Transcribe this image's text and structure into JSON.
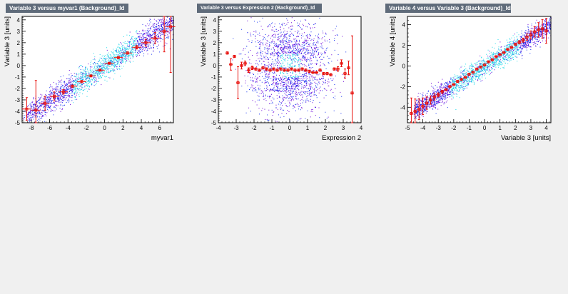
{
  "chart_data": [
    {
      "type": "scatter",
      "title": "Variable 3 versus myvar1 (Background)_Id",
      "xlabel": "myvar1",
      "ylabel": "Variable 3  [units]",
      "xlim": [
        -9,
        7.5
      ],
      "ylim": [
        -5,
        4.3
      ],
      "xticks": [
        -8,
        -6,
        -4,
        -2,
        0,
        2,
        4,
        6
      ],
      "yticks": [
        -5,
        -4,
        -3,
        -2,
        -1,
        0,
        1,
        2,
        3,
        4
      ],
      "series": [
        {
          "type": "profile",
          "color": "#e8120e",
          "x": [
            -8.5,
            -7.5,
            -6.5,
            -5.5,
            -4.5,
            -3.5,
            -2.5,
            -1.5,
            -0.5,
            0.5,
            1.5,
            2.5,
            3.5,
            4.5,
            5.5,
            6.5,
            7.2
          ],
          "y": [
            -3.8,
            -3.9,
            -3.3,
            -2.7,
            -2.3,
            -1.8,
            -1.4,
            -0.9,
            -0.4,
            0.2,
            0.7,
            1.1,
            1.6,
            2.0,
            2.4,
            3.0,
            3.4
          ],
          "err": [
            1.0,
            2.6,
            0.6,
            0.4,
            0.2,
            0.1,
            0.1,
            0.05,
            0.05,
            0.05,
            0.05,
            0.1,
            0.15,
            0.3,
            0.5,
            1.8,
            4.0
          ]
        }
      ]
    },
    {
      "type": "scatter",
      "title": "Variable 3 versus Expression 2 (Background)_Id",
      "xlabel": "Expression 2",
      "ylabel": "Variable 3  [units]",
      "xlim": [
        -4,
        4
      ],
      "ylim": [
        -5,
        4.3
      ],
      "xticks": [
        -4,
        -3,
        -2,
        -1,
        0,
        1,
        2,
        3,
        4
      ],
      "yticks": [
        -5,
        -4,
        -3,
        -2,
        -1,
        0,
        1,
        2,
        3,
        4
      ],
      "series": [
        {
          "type": "profile",
          "color": "#e8120e",
          "x": [
            -3.5,
            -3.3,
            -3.1,
            -2.9,
            -2.7,
            -2.5,
            -2.3,
            -2.1,
            -1.9,
            -1.7,
            -1.5,
            -1.3,
            -1.1,
            -0.9,
            -0.7,
            -0.5,
            -0.3,
            -0.1,
            0.1,
            0.3,
            0.5,
            0.7,
            0.9,
            1.1,
            1.3,
            1.5,
            1.7,
            1.9,
            2.1,
            2.3,
            2.5,
            2.7,
            2.9,
            3.1,
            3.3,
            3.5
          ],
          "y": [
            1.1,
            0.1,
            0.8,
            -1.5,
            0.0,
            0.2,
            -0.4,
            -0.2,
            -0.3,
            -0.4,
            -0.2,
            -0.3,
            -0.4,
            -0.3,
            -0.4,
            -0.3,
            -0.4,
            -0.4,
            -0.3,
            -0.4,
            -0.4,
            -0.3,
            -0.4,
            -0.5,
            -0.6,
            -0.6,
            -0.4,
            -0.7,
            -0.7,
            -0.8,
            -0.3,
            -0.3,
            0.2,
            -0.7,
            -0.2,
            -2.4
          ],
          "err": [
            0.1,
            0.5,
            0.1,
            1.4,
            0.3,
            0.2,
            0.2,
            0.15,
            0.1,
            0.1,
            0.1,
            0.1,
            0.1,
            0.1,
            0.1,
            0.1,
            0.1,
            0.1,
            0.1,
            0.1,
            0.1,
            0.1,
            0.1,
            0.1,
            0.1,
            0.1,
            0.1,
            0.1,
            0.1,
            0.1,
            0.1,
            0.2,
            0.3,
            0.4,
            0.6,
            5.0
          ]
        }
      ]
    },
    {
      "type": "scatter",
      "title": "Variable 4 versus Variable 3 (Background)_Id",
      "xlabel": "Variable 3  [units]",
      "ylabel": "Variable 4  [units]",
      "xlim": [
        -5,
        4.3
      ],
      "ylim": [
        -5.5,
        4.8
      ],
      "xticks": [
        -5,
        -4,
        -3,
        -2,
        -1,
        0,
        1,
        2,
        3,
        4
      ],
      "yticks": [
        -4,
        -2,
        0,
        2,
        4
      ],
      "series": [
        {
          "type": "profile",
          "color": "#e8120e",
          "x": [
            -4.75,
            -4.5,
            -4.25,
            -4.0,
            -3.75,
            -3.5,
            -3.25,
            -3.0,
            -2.75,
            -2.5,
            -2.25,
            -2.0,
            -1.75,
            -1.5,
            -1.25,
            -1.0,
            -0.75,
            -0.5,
            -0.25,
            0.0,
            0.25,
            0.5,
            0.75,
            1.0,
            1.25,
            1.5,
            1.75,
            2.0,
            2.25,
            2.5,
            2.75,
            3.0,
            3.25,
            3.5,
            3.75,
            4.0
          ],
          "y": [
            -4.6,
            -4.4,
            -4.2,
            -3.9,
            -3.6,
            -3.3,
            -3.0,
            -2.8,
            -2.5,
            -2.3,
            -2.0,
            -1.8,
            -1.5,
            -1.3,
            -1.1,
            -0.8,
            -0.6,
            -0.3,
            -0.1,
            0.1,
            0.4,
            0.6,
            0.9,
            1.1,
            1.3,
            1.6,
            1.8,
            2.1,
            2.3,
            2.5,
            2.8,
            3.0,
            3.3,
            3.5,
            3.6,
            3.4
          ],
          "err": [
            1.5,
            1.2,
            1.0,
            0.8,
            0.6,
            0.4,
            0.3,
            0.2,
            0.15,
            0.1,
            0.1,
            0.1,
            0.1,
            0.1,
            0.1,
            0.1,
            0.1,
            0.1,
            0.1,
            0.1,
            0.1,
            0.1,
            0.1,
            0.1,
            0.1,
            0.1,
            0.1,
            0.1,
            0.15,
            0.2,
            0.3,
            0.4,
            0.5,
            0.7,
            0.9,
            1.2
          ]
        }
      ]
    }
  ]
}
